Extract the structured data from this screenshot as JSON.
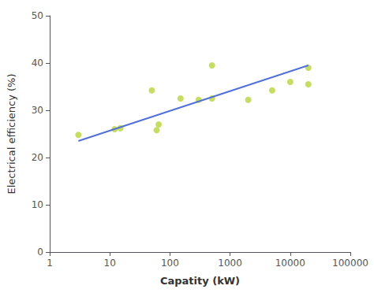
{
  "chart_data": {
    "type": "scatter",
    "xlabel": "Capatity (kW)",
    "ylabel": "Electrical efficiency (%)",
    "log": "x",
    "grid": false,
    "xlim": [
      1,
      100000
    ],
    "xticks": [
      1,
      10,
      100,
      1000,
      10000,
      100000
    ],
    "ylim": [
      0,
      50
    ],
    "yticks": [
      0,
      10,
      20,
      30,
      40,
      50
    ],
    "series": [
      {
        "type": "line",
        "x": [
          3,
          20000
        ],
        "values": [
          23.5,
          39.5
        ]
      },
      {
        "type": "scatter",
        "x": [
          3,
          12,
          15,
          50,
          60,
          65,
          150,
          300,
          500,
          500,
          2000,
          5000,
          10000,
          20000,
          20000
        ],
        "values": [
          24.8,
          26.0,
          26.2,
          34.2,
          25.8,
          27.0,
          32.5,
          32.2,
          32.5,
          39.5,
          32.2,
          34.2,
          36.0,
          35.5,
          39.0
        ]
      }
    ]
  }
}
